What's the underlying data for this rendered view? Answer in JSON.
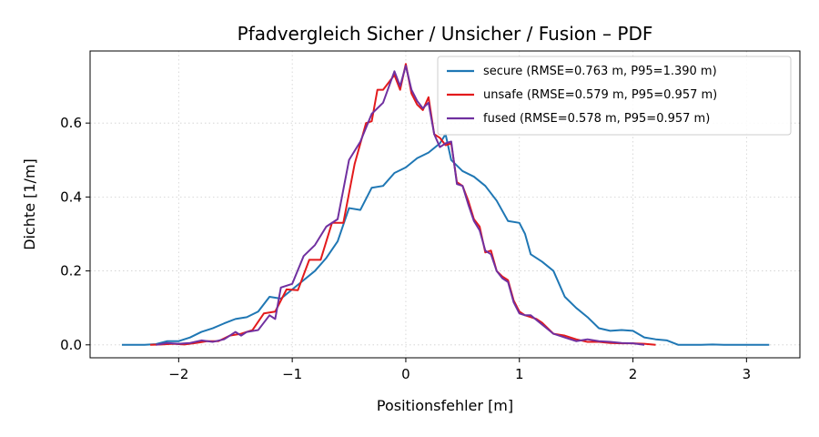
{
  "chart_data": {
    "type": "line",
    "title": "Pfadvergleich Sicher / Unsicher / Fusion – PDF",
    "xlabel": "Positionsfehler [m]",
    "ylabel": "Dichte [1/m]",
    "xlim": [
      -2.78,
      3.47
    ],
    "ylim": [
      -0.035,
      0.795
    ],
    "xticks": [
      -2,
      -1,
      0,
      1,
      2,
      3
    ],
    "xtick_labels": [
      "−2",
      "−1",
      "0",
      "1",
      "2",
      "3"
    ],
    "yticks": [
      0.0,
      0.2,
      0.4,
      0.6
    ],
    "ytick_labels": [
      "0.0",
      "0.2",
      "0.4",
      "0.6"
    ],
    "grid": true,
    "legend_position": "top-right",
    "series": [
      {
        "name": "secure (RMSE=0.763 m, P95=1.390 m)",
        "color": "#1f77b4",
        "x": [
          -2.5,
          -2.3,
          -2.2,
          -2.1,
          -2.0,
          -1.9,
          -1.8,
          -1.7,
          -1.6,
          -1.5,
          -1.4,
          -1.3,
          -1.2,
          -1.1,
          -1.0,
          -0.9,
          -0.8,
          -0.7,
          -0.6,
          -0.5,
          -0.4,
          -0.3,
          -0.2,
          -0.1,
          0.0,
          0.1,
          0.2,
          0.3,
          0.35,
          0.4,
          0.5,
          0.6,
          0.7,
          0.8,
          0.9,
          1.0,
          1.05,
          1.1,
          1.2,
          1.3,
          1.4,
          1.5,
          1.6,
          1.7,
          1.8,
          1.9,
          2.0,
          2.1,
          2.2,
          2.3,
          2.4,
          2.5,
          2.6,
          2.7,
          2.8,
          2.9,
          3.0,
          3.1,
          3.2
        ],
        "y": [
          0.0,
          0.0,
          0.002,
          0.01,
          0.01,
          0.02,
          0.035,
          0.045,
          0.058,
          0.07,
          0.075,
          0.09,
          0.13,
          0.125,
          0.15,
          0.175,
          0.2,
          0.235,
          0.28,
          0.37,
          0.365,
          0.425,
          0.43,
          0.465,
          0.48,
          0.505,
          0.52,
          0.545,
          0.57,
          0.5,
          0.47,
          0.455,
          0.43,
          0.39,
          0.335,
          0.33,
          0.3,
          0.245,
          0.225,
          0.2,
          0.13,
          0.1,
          0.075,
          0.045,
          0.038,
          0.04,
          0.038,
          0.02,
          0.015,
          0.012,
          0.0,
          0.0,
          0.0,
          0.001,
          0.0,
          0.0,
          0.0,
          0.0,
          0.0
        ]
      },
      {
        "name": "unsafe (RMSE=0.579 m, P95=0.957 m)",
        "color": "#e31a1c",
        "x": [
          -2.25,
          -2.15,
          -2.05,
          -1.95,
          -1.85,
          -1.75,
          -1.65,
          -1.55,
          -1.45,
          -1.35,
          -1.25,
          -1.15,
          -1.05,
          -0.95,
          -0.85,
          -0.75,
          -0.65,
          -0.55,
          -0.45,
          -0.35,
          -0.3,
          -0.25,
          -0.2,
          -0.15,
          -0.1,
          -0.05,
          0.0,
          0.05,
          0.1,
          0.15,
          0.2,
          0.25,
          0.3,
          0.35,
          0.4,
          0.45,
          0.5,
          0.55,
          0.6,
          0.65,
          0.7,
          0.75,
          0.8,
          0.85,
          0.9,
          0.95,
          1.0,
          1.05,
          1.1,
          1.15,
          1.2,
          1.3,
          1.4,
          1.5,
          1.6,
          1.7,
          1.8,
          1.9,
          2.0,
          2.1,
          2.2
        ],
        "y": [
          0.0,
          0.001,
          0.003,
          0.001,
          0.005,
          0.01,
          0.01,
          0.025,
          0.03,
          0.04,
          0.085,
          0.09,
          0.15,
          0.148,
          0.23,
          0.23,
          0.33,
          0.33,
          0.49,
          0.6,
          0.605,
          0.69,
          0.69,
          0.71,
          0.73,
          0.69,
          0.76,
          0.68,
          0.65,
          0.635,
          0.67,
          0.57,
          0.56,
          0.54,
          0.545,
          0.44,
          0.43,
          0.39,
          0.34,
          0.32,
          0.25,
          0.255,
          0.2,
          0.185,
          0.175,
          0.12,
          0.09,
          0.08,
          0.075,
          0.07,
          0.06,
          0.03,
          0.025,
          0.015,
          0.008,
          0.008,
          0.005,
          0.004,
          0.004,
          0.003,
          0.0
        ]
      },
      {
        "name": "fused (RMSE=0.578 m, P95=0.957 m)",
        "color": "#7030a0",
        "x": [
          -2.2,
          -2.1,
          -2.0,
          -1.9,
          -1.8,
          -1.7,
          -1.6,
          -1.5,
          -1.45,
          -1.4,
          -1.3,
          -1.2,
          -1.15,
          -1.1,
          -1.0,
          -0.9,
          -0.8,
          -0.7,
          -0.6,
          -0.5,
          -0.4,
          -0.3,
          -0.2,
          -0.1,
          -0.05,
          0.0,
          0.05,
          0.1,
          0.15,
          0.2,
          0.25,
          0.3,
          0.35,
          0.4,
          0.45,
          0.5,
          0.55,
          0.6,
          0.65,
          0.7,
          0.75,
          0.8,
          0.85,
          0.9,
          0.95,
          1.0,
          1.05,
          1.1,
          1.2,
          1.3,
          1.4,
          1.5,
          1.6,
          1.7,
          1.8,
          1.9,
          2.0,
          2.1
        ],
        "y": [
          0.0,
          0.005,
          0.003,
          0.005,
          0.012,
          0.008,
          0.015,
          0.035,
          0.025,
          0.035,
          0.04,
          0.08,
          0.07,
          0.155,
          0.165,
          0.24,
          0.27,
          0.32,
          0.34,
          0.5,
          0.55,
          0.625,
          0.655,
          0.74,
          0.7,
          0.755,
          0.69,
          0.66,
          0.64,
          0.655,
          0.57,
          0.535,
          0.545,
          0.55,
          0.435,
          0.43,
          0.38,
          0.335,
          0.31,
          0.255,
          0.245,
          0.2,
          0.18,
          0.17,
          0.115,
          0.085,
          0.08,
          0.08,
          0.055,
          0.03,
          0.02,
          0.01,
          0.015,
          0.01,
          0.008,
          0.005,
          0.004,
          0.0
        ]
      }
    ]
  }
}
